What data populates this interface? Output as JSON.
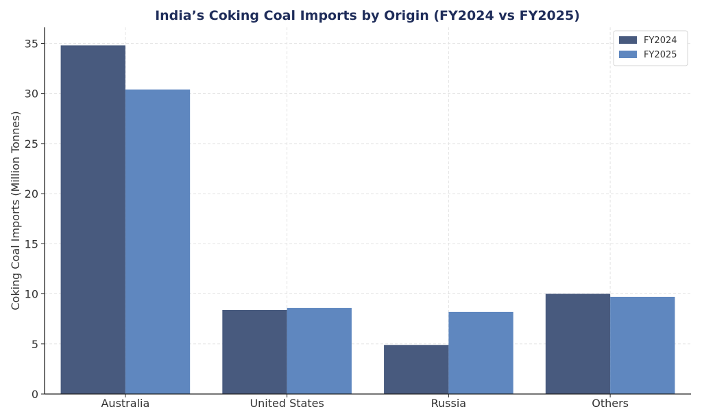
{
  "chart_data": {
    "type": "bar",
    "title": "India’s Coking Coal Imports by Origin (FY2024 vs FY2025)",
    "xlabel": "",
    "ylabel": "Coking Coal Imports (Million Tonnes)",
    "categories": [
      "Australia",
      "United States",
      "Russia",
      "Others"
    ],
    "series": [
      {
        "name": "FY2024",
        "values": [
          34.8,
          8.4,
          4.9,
          10.0
        ],
        "color": "#485a7e"
      },
      {
        "name": "FY2025",
        "values": [
          30.4,
          8.6,
          8.2,
          9.7
        ],
        "color": "#5f87bf"
      }
    ],
    "ylim": [
      0,
      36.6
    ],
    "yticks": [
      0,
      5,
      10,
      15,
      20,
      25,
      30,
      35
    ],
    "grid": true,
    "legend_position": "top-right"
  }
}
